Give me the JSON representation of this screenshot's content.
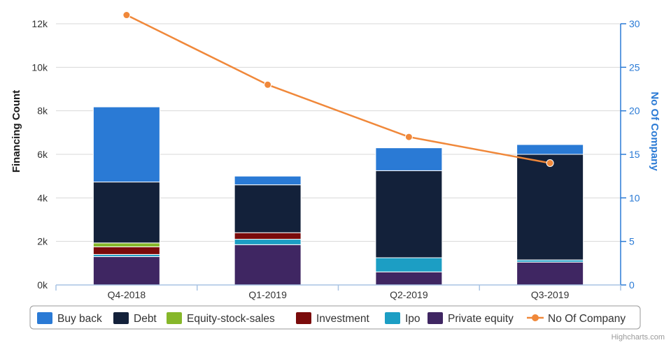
{
  "chart_data": {
    "type": "bar",
    "stacked": true,
    "categories": [
      "Q4-2018",
      "Q1-2019",
      "Q2-2019",
      "Q3-2019"
    ],
    "yaxis_left": {
      "label": "Financing Count",
      "ylim": [
        0,
        12000
      ],
      "ticks": [
        0,
        2000,
        4000,
        6000,
        8000,
        10000,
        12000
      ],
      "tick_labels": [
        "0k",
        "2k",
        "4k",
        "6k",
        "8k",
        "10k",
        "12k"
      ],
      "grid": true
    },
    "yaxis_right": {
      "label": "No Of Company",
      "ylim": [
        0,
        30
      ],
      "ticks": [
        0,
        5,
        10,
        15,
        20,
        25,
        30
      ],
      "tick_labels": [
        "0",
        "5",
        "10",
        "15",
        "20",
        "25",
        "30"
      ],
      "color": "#2a7ad5"
    },
    "series": [
      {
        "name": "Private equity",
        "color": "#3f2662",
        "values": [
          1300,
          1850,
          600,
          1050
        ]
      },
      {
        "name": "Ipo",
        "color": "#1c9ec4",
        "values": [
          100,
          250,
          650,
          100
        ]
      },
      {
        "name": "Investment",
        "color": "#7a0b0b",
        "values": [
          350,
          300,
          0,
          0
        ]
      },
      {
        "name": "Equity-stock-sales",
        "color": "#86b72a",
        "values": [
          180,
          0,
          0,
          0
        ]
      },
      {
        "name": "Debt",
        "color": "#13213a",
        "values": [
          2800,
          2200,
          4000,
          4850
        ]
      },
      {
        "name": "Buy back",
        "color": "#2a7ad5",
        "values": [
          3450,
          400,
          1050,
          450
        ]
      }
    ],
    "line_series": {
      "name": "No Of Company",
      "color": "#f0883a",
      "axis": "right",
      "values": [
        31,
        23,
        17,
        14
      ]
    },
    "legend": {
      "placement": "bottom",
      "order": [
        "Buy back",
        "Debt",
        "Equity-stock-sales",
        "Investment",
        "Ipo",
        "Private equity",
        "No Of Company"
      ]
    }
  },
  "credits": "Highcharts.com"
}
